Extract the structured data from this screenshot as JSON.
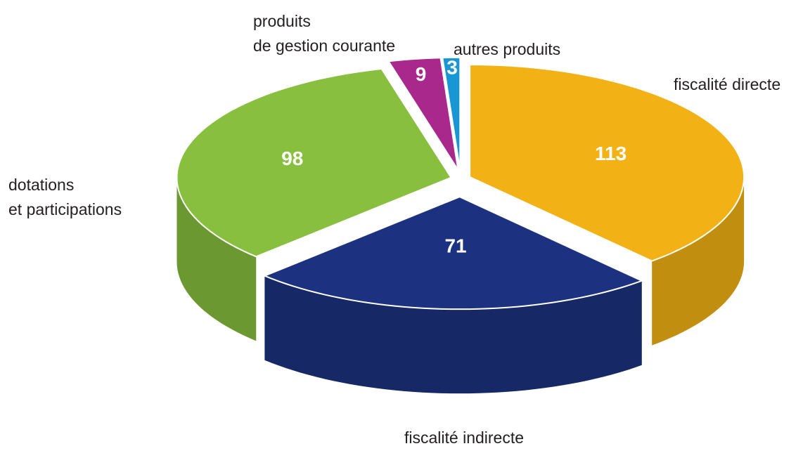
{
  "chart_data": {
    "type": "pie",
    "categories": [
      "fiscalité directe",
      "fiscalité indirecte",
      "dotations\net participations",
      "produits\nde gestion courante",
      "autres produits"
    ],
    "values": [
      113,
      71,
      98,
      9,
      3
    ],
    "colors": [
      "#f2b215",
      "#1c3280",
      "#88bf3e",
      "#a8288b",
      "#1997d4"
    ]
  }
}
